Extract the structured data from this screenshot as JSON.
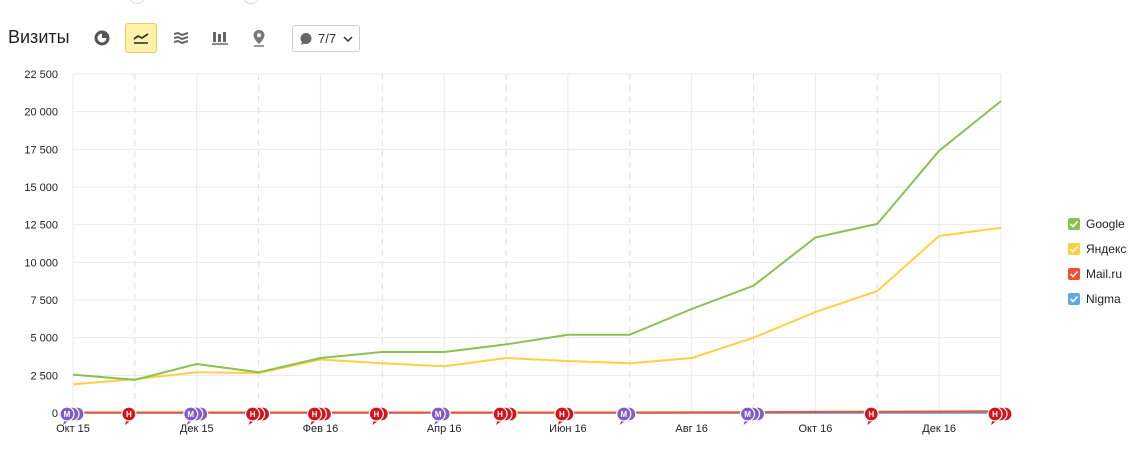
{
  "header": {
    "title": "Визиты",
    "annotations_label": "7/7",
    "toolbar": [
      {
        "name": "pie-chart-icon",
        "active": false
      },
      {
        "name": "line-chart-icon",
        "active": true
      },
      {
        "name": "area-chart-icon",
        "active": false
      },
      {
        "name": "bar-chart-icon",
        "active": false
      },
      {
        "name": "map-pin-icon",
        "active": false
      }
    ]
  },
  "colors": {
    "Google": "#8cc152",
    "Яндекс": "#ffd042",
    "Mail.ru": "#f5502a",
    "Nigma": "#5ea8e8",
    "marker_m": "#7e5ec6",
    "marker_h": "#d3131e"
  },
  "chart_data": {
    "type": "line",
    "x": [
      "Окт 15",
      "Ноя 15",
      "Дек 15",
      "Янв 16",
      "Фев 16",
      "Мар 16",
      "Апр 16",
      "Май 16",
      "Июн 16",
      "Июл 16",
      "Авг 16",
      "Сен 16",
      "Окт 16",
      "Ноя 16",
      "Дек 16",
      "Янв 17"
    ],
    "xticks": [
      "Окт 15",
      "Дек 15",
      "Фев 16",
      "Апр 16",
      "Июн 16",
      "Авг 16",
      "Окт 16",
      "Дек 16"
    ],
    "yticks": [
      "0",
      "2 500",
      "5 000",
      "7 500",
      "10 000",
      "12 500",
      "15 000",
      "17 500",
      "20 000",
      "22 500"
    ],
    "ylim": [
      0,
      22500
    ],
    "grid": true,
    "legend": "right",
    "series": [
      {
        "name": "Google",
        "values": [
          2550,
          2200,
          3250,
          2700,
          3650,
          4050,
          4050,
          4550,
          5200,
          5200,
          6900,
          8450,
          11650,
          12550,
          17400,
          20700
        ]
      },
      {
        "name": "Яндекс",
        "values": [
          1900,
          2250,
          2700,
          2650,
          3550,
          3300,
          3100,
          3650,
          3450,
          3300,
          3650,
          5000,
          6700,
          8100,
          11750,
          12300
        ]
      },
      {
        "name": "Mail.ru",
        "values": [
          30,
          30,
          30,
          30,
          30,
          30,
          30,
          30,
          30,
          30,
          40,
          50,
          70,
          80,
          100,
          120
        ]
      },
      {
        "name": "Nigma",
        "values": [
          5,
          5,
          5,
          5,
          5,
          5,
          5,
          5,
          5,
          5,
          5,
          5,
          5,
          5,
          5,
          5
        ]
      }
    ],
    "markers": [
      {
        "label": "M",
        "x": "Окт 15",
        "kind": "m",
        "count": 3
      },
      {
        "label": "H",
        "x": "Ноя 15",
        "kind": "h",
        "count": 1
      },
      {
        "label": "M",
        "x": "Дек 15",
        "kind": "m",
        "count": 3
      },
      {
        "label": "H",
        "x": "Янв 16",
        "kind": "h",
        "count": 3
      },
      {
        "label": "H",
        "x": "Фев 16",
        "kind": "h",
        "count": 3
      },
      {
        "label": "H",
        "x": "Мар 16",
        "kind": "h",
        "count": 2
      },
      {
        "label": "M",
        "x": "Апр 16",
        "kind": "m",
        "count": 2
      },
      {
        "label": "H",
        "x": "Май 16",
        "kind": "h",
        "count": 3
      },
      {
        "label": "H",
        "x": "Июн 16",
        "kind": "h",
        "count": 2
      },
      {
        "label": "M",
        "x": "Июл 16",
        "kind": "m",
        "count": 2
      },
      {
        "label": "M",
        "x": "Сен 16",
        "kind": "m",
        "count": 3
      },
      {
        "label": "H",
        "x": "Ноя 16",
        "kind": "h",
        "count": 1
      },
      {
        "label": "H",
        "x": "Янв 17",
        "kind": "h",
        "count": 3
      }
    ]
  }
}
